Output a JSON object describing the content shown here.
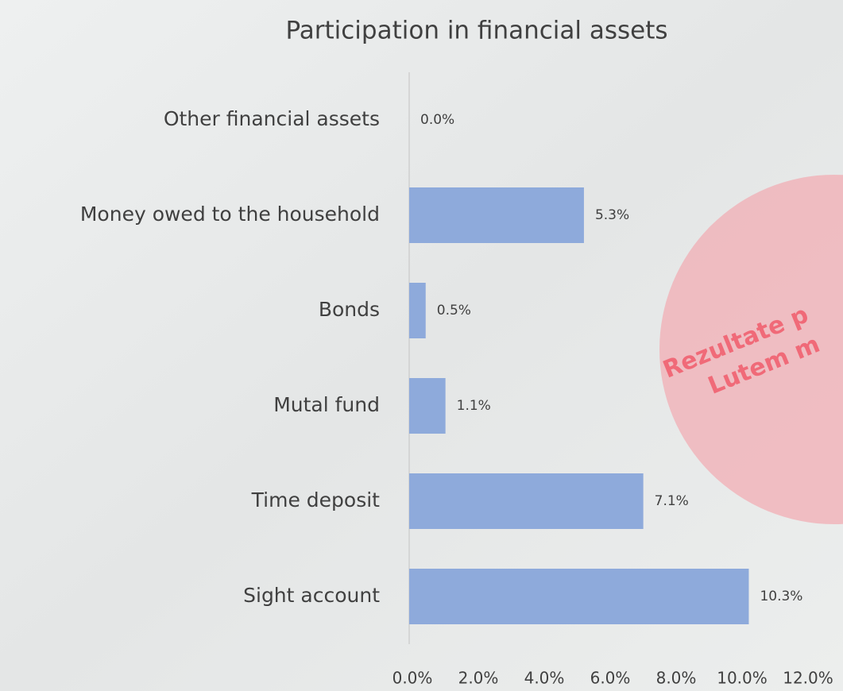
{
  "chart_data": {
    "type": "barh",
    "title": "Participation in financial assets",
    "categories": [
      "Other financial assets",
      "Money owed to the household",
      "Bonds",
      "Mutal fund",
      "Time deposit",
      "Sight account"
    ],
    "values": [
      0.0,
      5.3,
      0.5,
      1.1,
      7.1,
      10.3
    ],
    "value_labels": [
      "0.0%",
      "5.3%",
      "0.5%",
      "1.1%",
      "7.1%",
      "10.3%"
    ],
    "color": "#8eaadb",
    "xlim": [
      0,
      12
    ],
    "xticks": [
      {
        "value": 0,
        "label": "0.0%"
      },
      {
        "value": 2,
        "label": "2.0%"
      },
      {
        "value": 4,
        "label": "4.0%"
      },
      {
        "value": 6,
        "label": "6.0%"
      },
      {
        "value": 8,
        "label": "8.0%"
      },
      {
        "value": 10,
        "label": "10.0%"
      },
      {
        "value": 12,
        "label": "12.0%"
      }
    ],
    "grid": false,
    "annotations": [
      "Rezultate p",
      "Lutem m"
    ]
  }
}
